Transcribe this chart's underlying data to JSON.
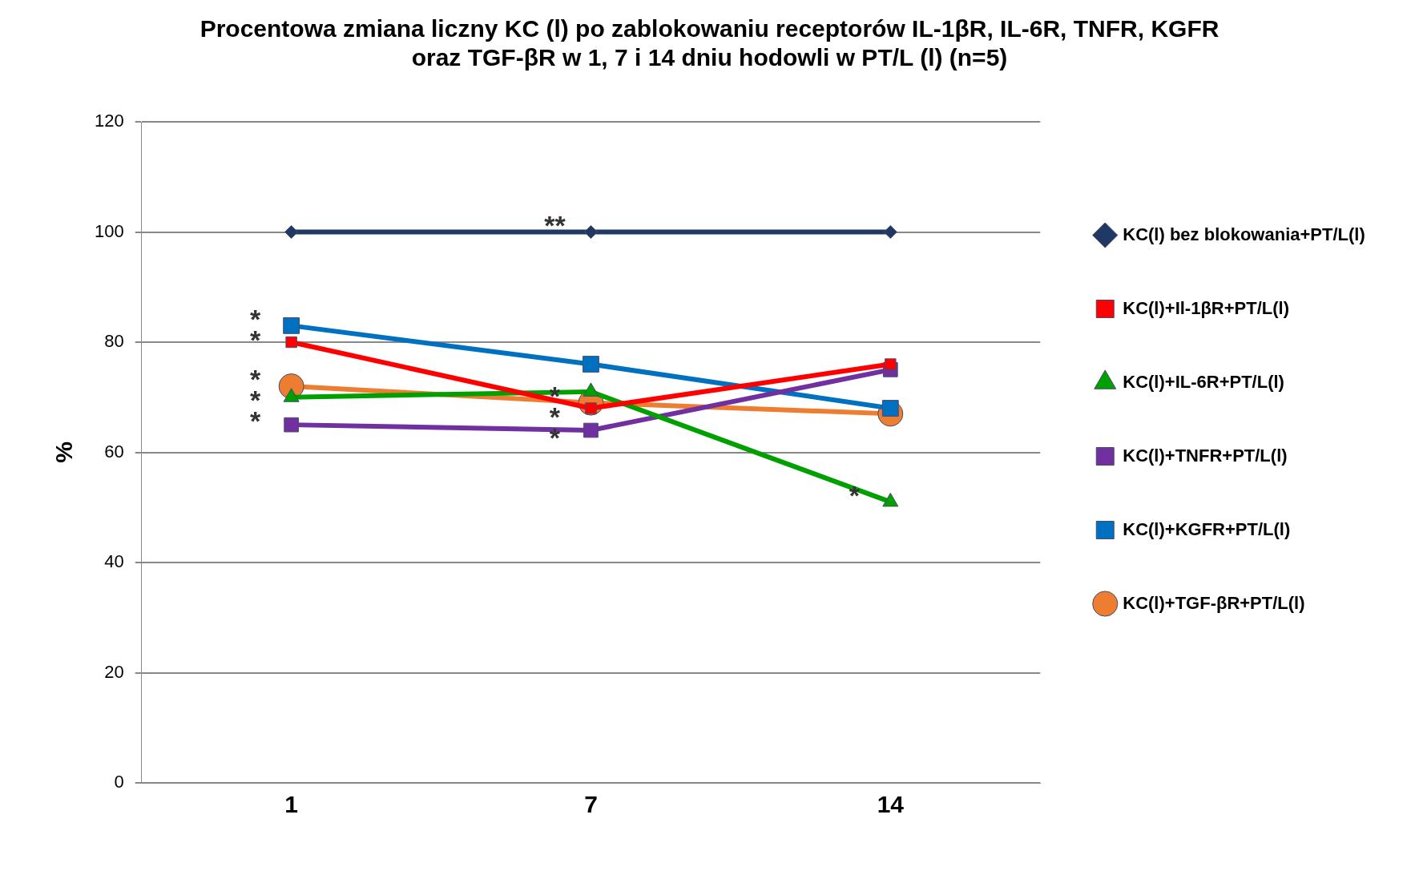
{
  "chart_data": {
    "type": "line",
    "title": "Procentowa zmiana liczny KC (l) po zablokowaniu receptorów IL-1βR, IL-6R, TNFR, KGFR\noraz TGF-βR w 1, 7 i 14 dniu hodowli w PT/L (l) (n=5)",
    "ylabel": "%",
    "categories": [
      "1",
      "7",
      "14"
    ],
    "series": [
      {
        "name": "KC(l) bez blokowania+PT/L(l)",
        "color": "#1f3864",
        "marker": "diamond",
        "values": [
          100,
          100,
          100
        ]
      },
      {
        "name": "KC(l)+Il-1βR+PT/L(l)",
        "color": "#ff0000",
        "marker": "square",
        "values": [
          80,
          68,
          76
        ]
      },
      {
        "name": "KC(l)+IL-6R+PT/L(l)",
        "color": "#00a000",
        "marker": "triangle",
        "values": [
          70,
          71,
          51
        ]
      },
      {
        "name": "KC(l)+TNFR+PT/L(l)",
        "color": "#7030a0",
        "marker": "square",
        "values": [
          65,
          64,
          75
        ]
      },
      {
        "name": "KC(l)+KGFR+PT/L(l)",
        "color": "#0070c0",
        "marker": "square",
        "values": [
          83,
          76,
          68
        ]
      },
      {
        "name": "KC(l)+TGF-βR+PT/L(l)",
        "color": "#ed7d31",
        "marker": "circle",
        "values": [
          72,
          69,
          67
        ]
      }
    ],
    "ylim": [
      0,
      120
    ],
    "yticks": [
      0,
      20,
      40,
      60,
      80,
      100,
      120
    ],
    "grid": "y",
    "legend": "right",
    "line_style": "solid",
    "annotations": [
      {
        "text": "*",
        "x": "1",
        "y": 83
      },
      {
        "text": "*",
        "x": "1",
        "y": 80
      },
      {
        "text": "*",
        "x": "1",
        "y": 72
      },
      {
        "text": "*",
        "x": "1",
        "y": 70
      },
      {
        "text": "*",
        "x": "1",
        "y": 65
      },
      {
        "text": "**",
        "x": "7",
        "y": 100
      },
      {
        "text": "*",
        "x": "7",
        "y": 64
      },
      {
        "text": "*",
        "x": "7",
        "y": 69
      },
      {
        "text": "*",
        "x": "7",
        "y": 68
      },
      {
        "text": "*",
        "x": "14",
        "y": 51
      }
    ]
  }
}
